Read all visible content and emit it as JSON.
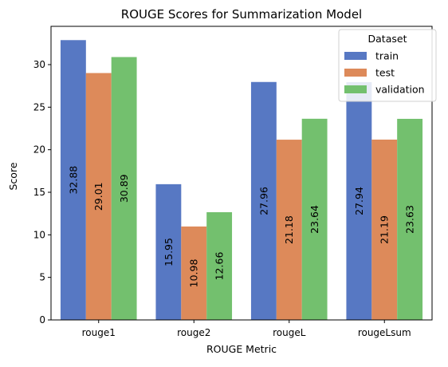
{
  "chart_data": {
    "type": "bar",
    "title": "ROUGE Scores for Summarization Model",
    "xlabel": "ROUGE Metric",
    "ylabel": "Score",
    "categories": [
      "rouge1",
      "rouge2",
      "rougeL",
      "rougeLsum"
    ],
    "series": [
      {
        "name": "train",
        "values": [
          32.88,
          15.95,
          27.96,
          27.94
        ],
        "color": "#5778c3",
        "labels": [
          "32.88",
          "15.95",
          "27.96",
          "27.94"
        ]
      },
      {
        "name": "test",
        "values": [
          29.01,
          10.98,
          21.18,
          21.19
        ],
        "color": "#dd8a5a",
        "labels": [
          "29.01",
          "10.98",
          "21.18",
          "21.19"
        ]
      },
      {
        "name": "validation",
        "values": [
          30.89,
          12.66,
          23.64,
          23.63
        ],
        "color": "#73c06e",
        "labels": [
          "30.89",
          "12.66",
          "23.64",
          "23.63"
        ]
      }
    ],
    "ylim": [
      0,
      34.5
    ],
    "yticks": [
      0,
      5,
      10,
      15,
      20,
      25,
      30
    ],
    "grid": false,
    "legend": {
      "title": "Dataset",
      "position": "top-right"
    }
  }
}
